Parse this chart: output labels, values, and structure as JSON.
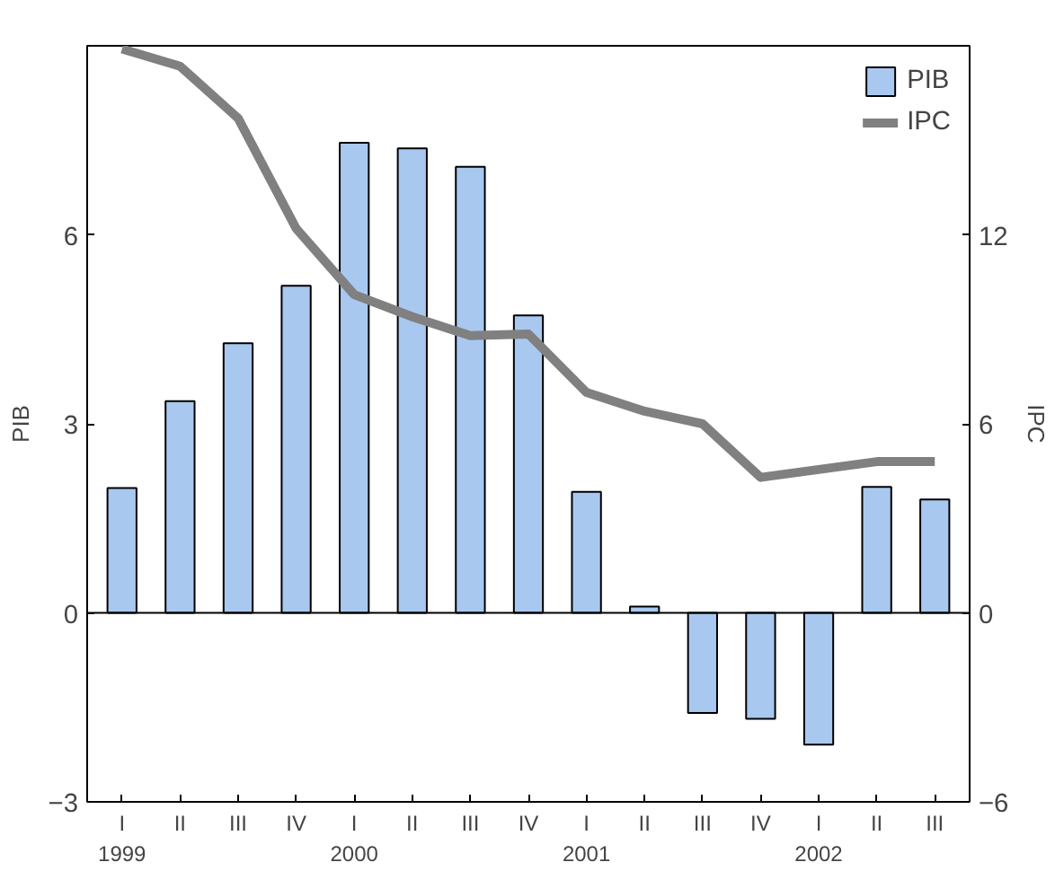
{
  "chart_data": {
    "type": "bar",
    "ylabel": "PIB",
    "y2label": "IPC",
    "categories": [
      "I\n1999",
      "II",
      "III",
      "IV",
      "I\n2000",
      "II",
      "III",
      "IV",
      "I\n2001",
      "II",
      "III",
      "IV",
      "I\n2002",
      "II",
      "III"
    ],
    "series": [
      {
        "name": "PIB",
        "color": "#a9c8f0",
        "values": [
          1.98,
          3.36,
          4.28,
          5.19,
          7.46,
          7.37,
          7.08,
          4.72,
          1.92,
          0.1,
          -1.59,
          -1.68,
          -2.09,
          2.0,
          1.8
        ]
      },
      {
        "name": "IPC",
        "type": "line",
        "axis": "y2",
        "color": "#808080",
        "values": [
          17.9,
          17.35,
          15.7,
          12.2,
          10.1,
          9.4,
          8.8,
          8.85,
          7.0,
          6.4,
          6.0,
          4.3,
          4.55,
          4.8,
          4.8
        ]
      }
    ],
    "ylim": [
      -3,
      9
    ],
    "yticks": [
      -3,
      0,
      3,
      6
    ],
    "y2lim": [
      -6,
      18
    ],
    "y2ticks": [
      -6,
      0,
      6,
      12
    ],
    "ref_lines": [
      {
        "axis": "y",
        "value": 0,
        "color": "#000000"
      }
    ],
    "grid": false,
    "legend": "top right"
  }
}
